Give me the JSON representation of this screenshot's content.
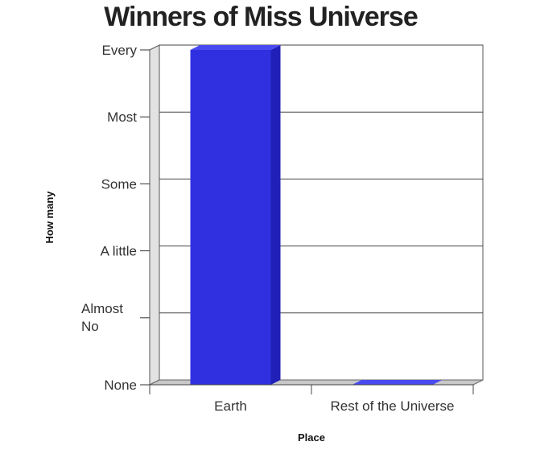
{
  "chart_data": {
    "type": "bar",
    "title": "Winners of Miss Universe",
    "xlabel": "Place",
    "ylabel": "How many",
    "categories": [
      "Earth",
      "Rest of the Universe"
    ],
    "y_tick_labels": [
      "None",
      "Almost No",
      "A little",
      "Some",
      "Most",
      "Every"
    ],
    "values": [
      5,
      0
    ],
    "ylim": [
      0,
      5
    ],
    "grid": true,
    "style": "3d",
    "bar_color": "#3030e0",
    "bar_side_color": "#2020b8",
    "bar_top_color": "#4a4af0"
  }
}
